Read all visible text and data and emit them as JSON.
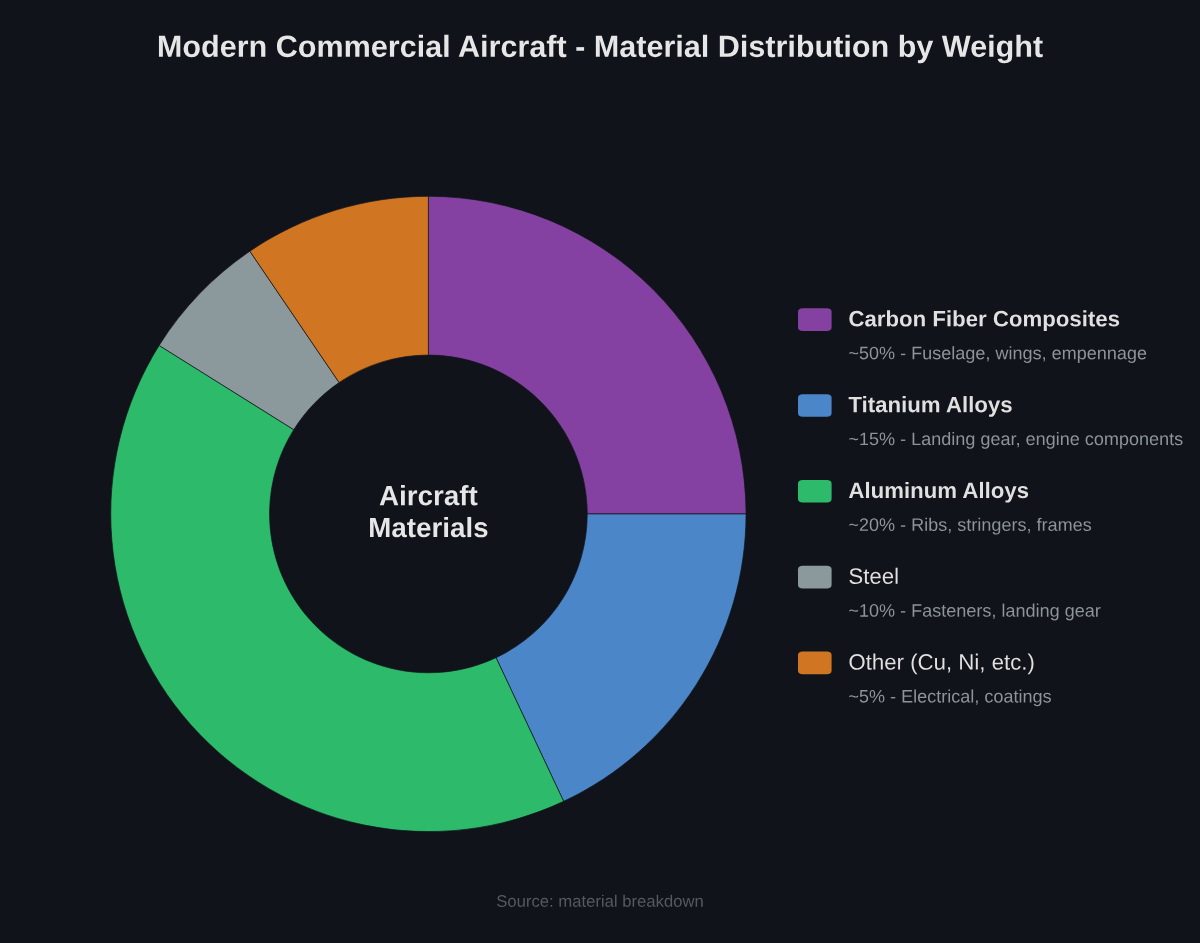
{
  "chart_data": {
    "type": "donut",
    "title": "Modern Commercial Aircraft - Material Distribution by Weight",
    "categories": [
      "Carbon Fiber Composites",
      "Titanium Alloys",
      "Aluminum Alloys",
      "Steel",
      "Other (Cu, Ni, etc.)"
    ],
    "values": [
      25,
      18,
      40.9,
      6.6,
      9.5
    ],
    "colors": [
      "#8441a1",
      "#4a86c8",
      "#2dbb6b",
      "#8b989c",
      "#d07522"
    ],
    "legend": "right",
    "annotations": [
      "~50% - Fuselage, wings, empennage",
      "~15% - Landing gear, engine components",
      "~20% - Ribs, stringers, frames",
      "~10% - Fasteners, landing gear",
      "~5% - Electrical, coatings",
      "Aircraft\nMaterials",
      "Source: material breakdown"
    ]
  }
}
